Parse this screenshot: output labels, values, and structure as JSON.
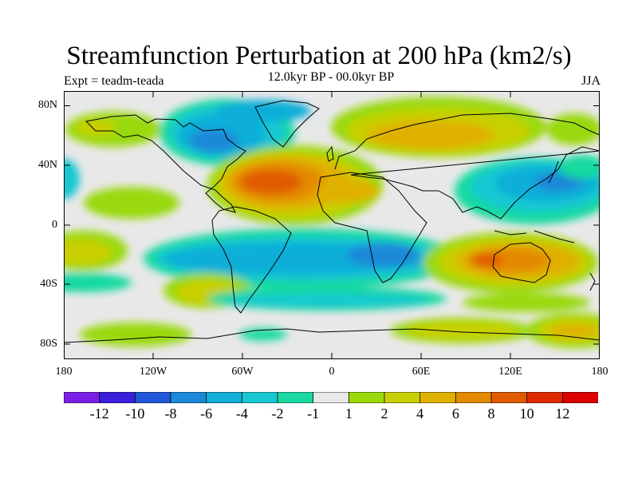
{
  "title": "Streamfunction Perturbation at 200 hPa (km2/s)",
  "subtitle": "12.0kyr BP - 00.0kyr BP",
  "left_label": "Expt = teadm-teada",
  "right_label": "JJA",
  "axes": {
    "lat_ticks": [
      "80N",
      "40N",
      "0",
      "40S",
      "80S"
    ],
    "lon_ticks": [
      "180",
      "120W",
      "60W",
      "0",
      "60E",
      "120E",
      "180"
    ]
  },
  "colorbar": {
    "labels": [
      "-12",
      "-10",
      "-8",
      "-6",
      "-4",
      "-2",
      "-1",
      "1",
      "2",
      "4",
      "6",
      "8",
      "10",
      "12"
    ],
    "colors": [
      "#7b1fe6",
      "#3a1fdc",
      "#1f57d6",
      "#1c88d8",
      "#10aed8",
      "#17c8d2",
      "#19d9a0",
      "#e8e8e8",
      "#9ad90a",
      "#c9cf05",
      "#e0b000",
      "#e38a00",
      "#e05a00",
      "#de2a00",
      "#dc0000"
    ]
  },
  "colors": {
    "background": "#e8e8e8",
    "coastline": "#000000"
  }
}
